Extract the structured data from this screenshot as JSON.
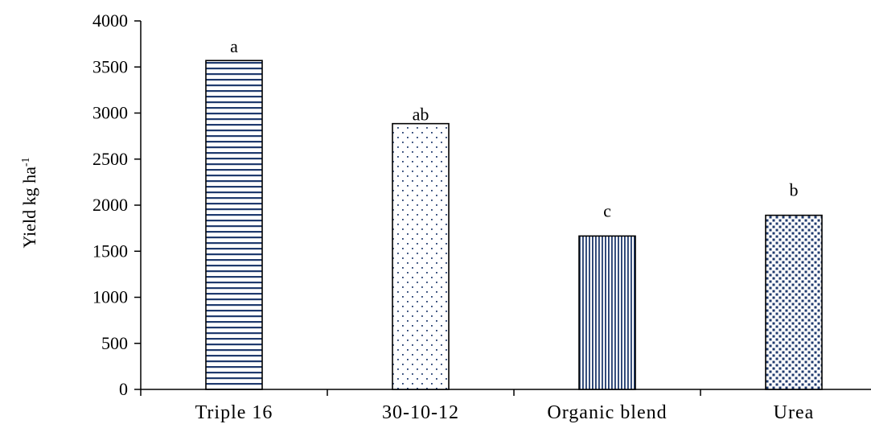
{
  "chart_data": {
    "type": "bar",
    "title": "",
    "xlabel": "",
    "ylabel": "Yield kg ha",
    "ylabel_superscript": "-1",
    "categories": [
      "Triple 16",
      "30-10-12",
      "Organic blend",
      "Urea"
    ],
    "values": [
      3570,
      2885,
      1665,
      1890
    ],
    "data_labels": [
      "a",
      "ab",
      "c",
      "b"
    ],
    "patterns": [
      "horizontal-lines",
      "sparse-dots",
      "vertical-lines",
      "dense-squares"
    ],
    "pattern_color": "#1f3a6e",
    "ylim": [
      0,
      4000
    ],
    "yticks": [
      0,
      500,
      1000,
      1500,
      2000,
      2500,
      3000,
      3500,
      4000
    ],
    "grid": false,
    "legend": "none"
  }
}
